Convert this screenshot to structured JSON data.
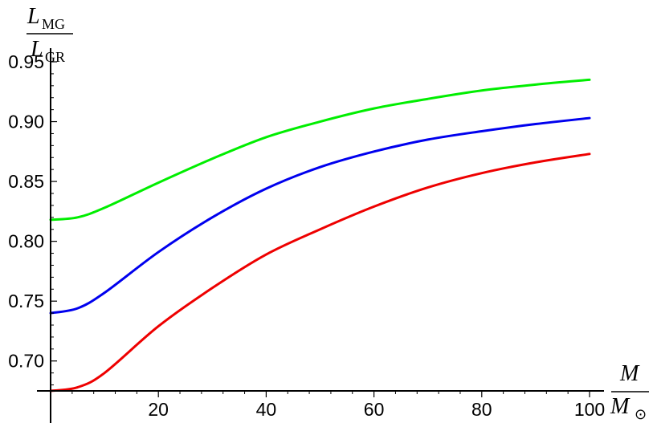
{
  "chart_data": {
    "type": "line",
    "xlabel": {
      "numerator": "M",
      "denominator": "M",
      "denominator_subscript": "⊙"
    },
    "ylabel": {
      "numerator": "L",
      "numerator_subscript": "MG",
      "denominator": "L",
      "denominator_subscript": "GR"
    },
    "xlim": [
      0,
      100
    ],
    "ylim": [
      0.675,
      0.95
    ],
    "x_ticks": [
      20,
      40,
      60,
      80,
      100
    ],
    "x_tick_labels": [
      "20",
      "40",
      "60",
      "80",
      "100"
    ],
    "y_ticks": [
      0.7,
      0.75,
      0.8,
      0.85,
      0.9,
      0.95
    ],
    "y_tick_labels": [
      "0.70",
      "0.75",
      "0.80",
      "0.85",
      "0.90",
      "0.95"
    ],
    "grid": false,
    "series": [
      {
        "color": "#00ee00",
        "x": [
          0,
          5,
          10,
          20,
          30,
          40,
          50,
          60,
          70,
          80,
          90,
          100
        ],
        "values": [
          0.818,
          0.82,
          0.828,
          0.849,
          0.869,
          0.887,
          0.9,
          0.911,
          0.919,
          0.926,
          0.931,
          0.935
        ]
      },
      {
        "color": "#0000ee",
        "x": [
          0,
          5,
          10,
          20,
          30,
          40,
          50,
          60,
          70,
          80,
          90,
          100
        ],
        "values": [
          0.74,
          0.744,
          0.757,
          0.791,
          0.82,
          0.844,
          0.862,
          0.875,
          0.885,
          0.892,
          0.898,
          0.903
        ]
      },
      {
        "color": "#ee0000",
        "x": [
          0,
          5,
          10,
          20,
          30,
          40,
          50,
          60,
          70,
          80,
          90,
          100
        ],
        "values": [
          0.675,
          0.678,
          0.69,
          0.729,
          0.761,
          0.789,
          0.81,
          0.829,
          0.845,
          0.857,
          0.866,
          0.873
        ]
      }
    ]
  }
}
